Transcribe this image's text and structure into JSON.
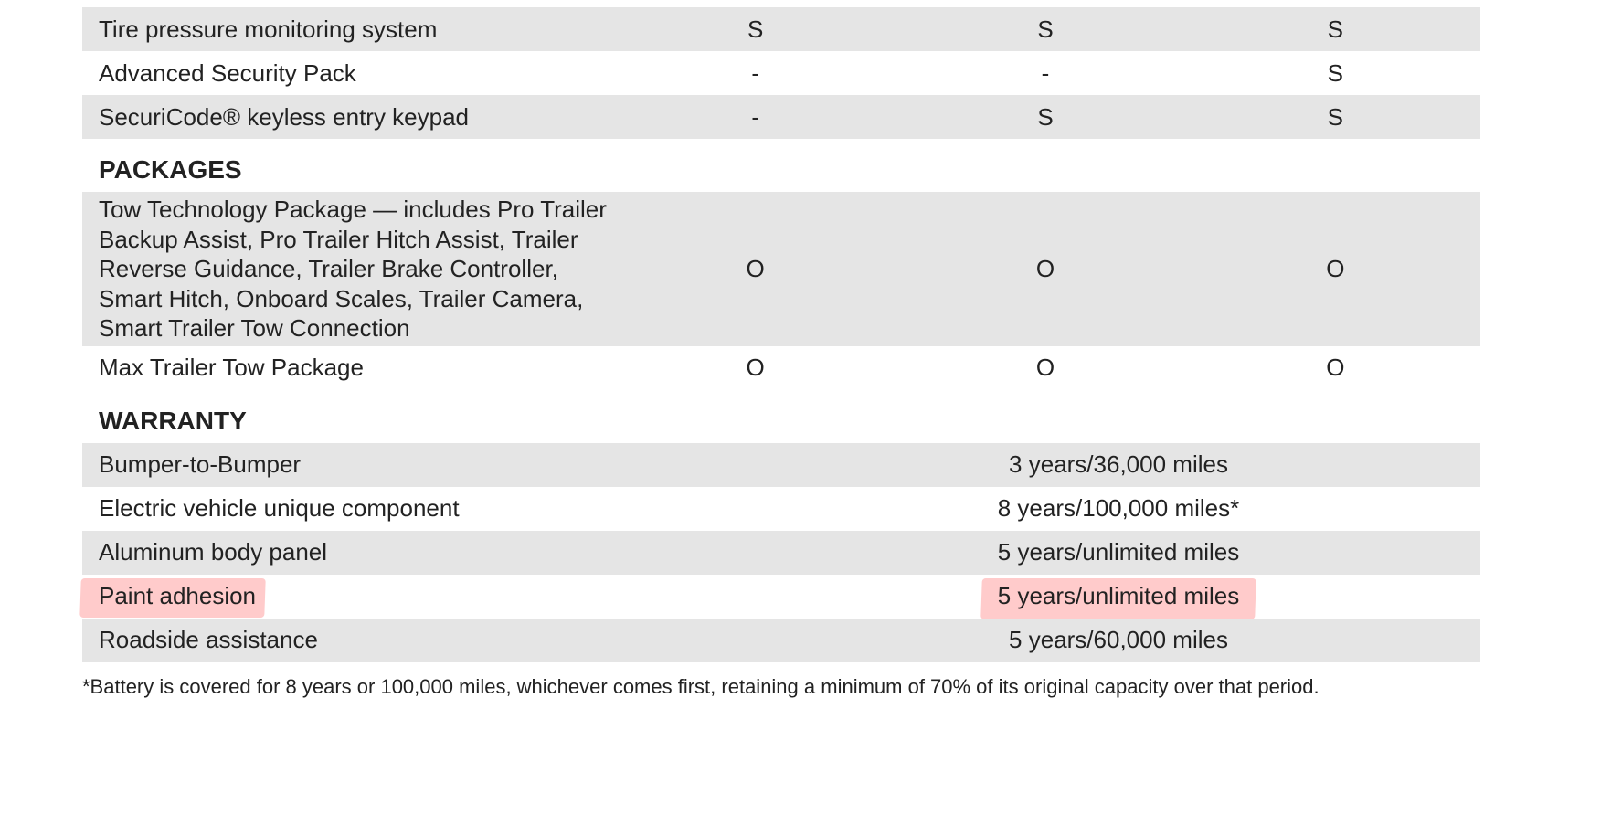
{
  "colors": {
    "shaded_row": "#e5e5e5",
    "white_row": "#ffffff",
    "text": "#222222",
    "highlight": "rgba(255,140,140,0.45)"
  },
  "typography": {
    "body_fontsize_pt": 20,
    "header_fontsize_pt": 21,
    "footnote_fontsize_pt": 17,
    "header_weight": "bold"
  },
  "safety_rows": [
    {
      "label": "Tire pressure monitoring system",
      "values": [
        "S",
        "S",
        "S"
      ],
      "shaded": true
    },
    {
      "label": "Advanced Security Pack",
      "values": [
        "-",
        "-",
        "S"
      ],
      "shaded": false
    },
    {
      "label": "SecuriCode® keyless entry keypad",
      "values": [
        "-",
        "S",
        "S"
      ],
      "shaded": true
    }
  ],
  "packages_header": "PACKAGES",
  "packages_rows": [
    {
      "label": "Tow Technology Package — includes Pro Trailer Backup Assist, Pro Trailer Hitch Assist, Trailer Reverse Guidance, Trailer Brake Controller, Smart Hitch, Onboard Scales, Trailer Camera, Smart Trailer Tow Connection",
      "values": [
        "O",
        "O",
        "O"
      ],
      "shaded": true
    },
    {
      "label": "Max Trailer Tow Package",
      "values": [
        "O",
        "O",
        "O"
      ],
      "shaded": false
    }
  ],
  "warranty_header": "WARRANTY",
  "warranty_rows": [
    {
      "label": "Bumper-to-Bumper",
      "value": "3 years/36,000 miles",
      "shaded": true,
      "highlight": false
    },
    {
      "label": "Electric vehicle unique component",
      "value": "8 years/100,000 miles*",
      "shaded": false,
      "highlight": false
    },
    {
      "label": "Aluminum body panel",
      "value": "5 years/unlimited miles",
      "shaded": true,
      "highlight": false
    },
    {
      "label": "Paint adhesion",
      "value": "5 years/unlimited miles",
      "shaded": false,
      "highlight": true
    },
    {
      "label": "Roadside assistance",
      "value": "5 years/60,000 miles",
      "shaded": true,
      "highlight": false
    }
  ],
  "footnote": "*Battery is covered for 8 years or 100,000 miles, whichever comes first, retaining a minimum of 70% of its original capacity over that period."
}
